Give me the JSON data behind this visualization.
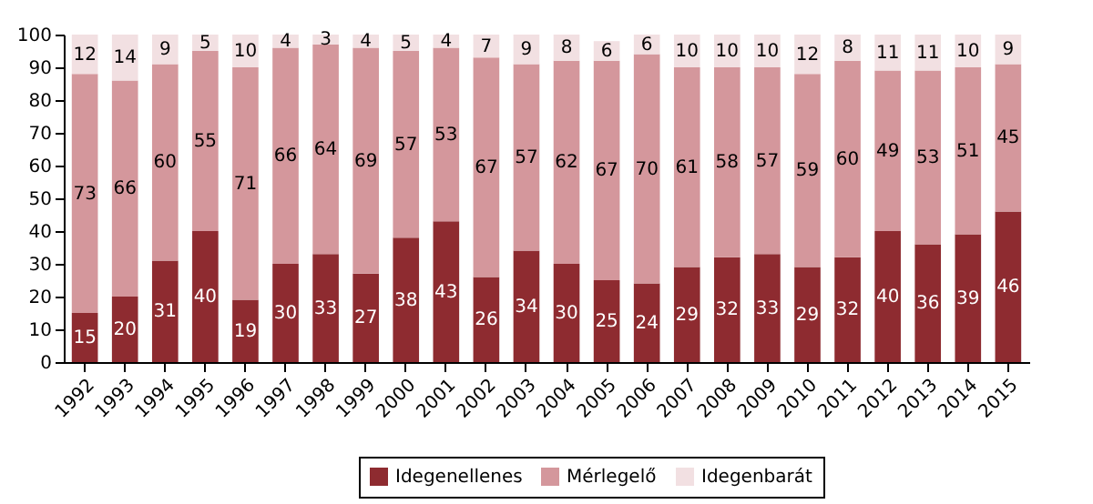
{
  "chart_data": {
    "type": "bar",
    "stacked": true,
    "categories": [
      "1992",
      "1993",
      "1994",
      "1995",
      "1996",
      "1997",
      "1998",
      "1999",
      "2000",
      "2001",
      "2002",
      "2003",
      "2004",
      "2005",
      "2006",
      "2007",
      "2008",
      "2009",
      "2010",
      "2011",
      "2012",
      "2013",
      "2014",
      "2015"
    ],
    "series": [
      {
        "name": "Idegenellenes",
        "color": "#8e2b30",
        "values": [
          15,
          20,
          31,
          40,
          19,
          30,
          33,
          27,
          38,
          43,
          26,
          34,
          30,
          25,
          24,
          29,
          32,
          33,
          29,
          32,
          40,
          36,
          39,
          46
        ]
      },
      {
        "name": "Mérlegelő",
        "color": "#d4979c",
        "values": [
          73,
          66,
          60,
          55,
          71,
          66,
          64,
          69,
          57,
          53,
          67,
          57,
          62,
          67,
          70,
          61,
          58,
          57,
          59,
          60,
          49,
          53,
          51,
          45
        ]
      },
      {
        "name": "Idegenbarát",
        "color": "#f2e0e2",
        "values": [
          12,
          14,
          9,
          5,
          10,
          4,
          3,
          4,
          5,
          4,
          7,
          9,
          8,
          6,
          6,
          10,
          10,
          10,
          12,
          8,
          11,
          11,
          10,
          9
        ]
      }
    ],
    "ylim": [
      0,
      100
    ],
    "yticks": [
      0,
      10,
      20,
      30,
      40,
      50,
      60,
      70,
      80,
      90,
      100
    ],
    "data_labels": true,
    "legend": "bottom",
    "grid": false
  }
}
